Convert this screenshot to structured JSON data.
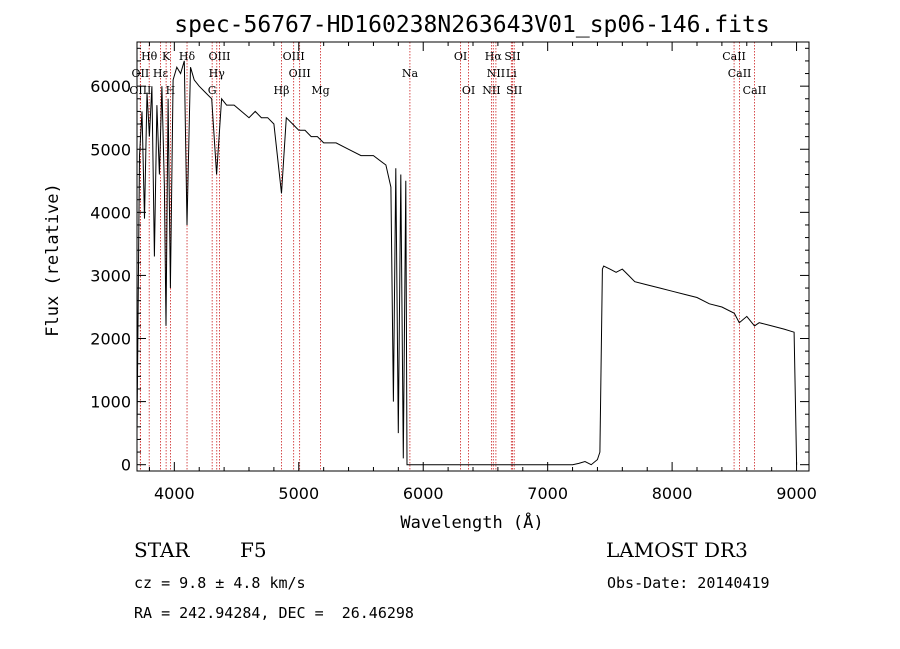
{
  "chart_data": {
    "type": "line",
    "title": "spec-56767-HD160238N263643V01_sp06-146.fits",
    "xlabel": "Wavelength (Å)",
    "ylabel": "Flux (relative)",
    "xlim": [
      3700,
      9100
    ],
    "ylim": [
      -100,
      6700
    ],
    "xticks": [
      4000,
      5000,
      6000,
      7000,
      8000,
      9000
    ],
    "yticks": [
      0,
      1000,
      2000,
      3000,
      4000,
      5000,
      6000
    ],
    "xtick_labels": [
      "4000",
      "5000",
      "6000",
      "7000",
      "8000",
      "9000"
    ],
    "ytick_labels": [
      "0",
      "1000",
      "2000",
      "3000",
      "4000",
      "5000",
      "6000"
    ],
    "series": [
      {
        "name": "spectrum",
        "x": [
          3700,
          3720,
          3740,
          3760,
          3780,
          3800,
          3820,
          3840,
          3860,
          3880,
          3900,
          3920,
          3933,
          3950,
          3968,
          3990,
          4020,
          4050,
          4080,
          4102,
          4130,
          4160,
          4200,
          4250,
          4300,
          4340,
          4380,
          4420,
          4480,
          4540,
          4600,
          4650,
          4700,
          4750,
          4800,
          4861,
          4900,
          4950,
          5000,
          5050,
          5100,
          5150,
          5200,
          5300,
          5400,
          5500,
          5600,
          5700,
          5740,
          5760,
          5780,
          5800,
          5820,
          5840,
          5860,
          5870,
          5900,
          6000,
          6100,
          6200,
          6300,
          6400,
          6500,
          6600,
          6700,
          6800,
          6900,
          7000,
          7100,
          7200,
          7250,
          7300,
          7350,
          7400,
          7420,
          7440,
          7450,
          7500,
          7550,
          7600,
          7650,
          7700,
          7800,
          7900,
          8000,
          8100,
          8200,
          8300,
          8400,
          8500,
          8540,
          8600,
          8662,
          8700,
          8800,
          8900,
          8980,
          9000
        ],
        "y": [
          500,
          4900,
          5600,
          3900,
          5900,
          5200,
          6000,
          3300,
          5700,
          4600,
          6000,
          4400,
          2200,
          5800,
          2800,
          6100,
          6300,
          6200,
          6400,
          3800,
          6300,
          6100,
          6000,
          5900,
          5800,
          4600,
          5800,
          5700,
          5700,
          5600,
          5500,
          5600,
          5500,
          5500,
          5400,
          4300,
          5500,
          5400,
          5300,
          5300,
          5200,
          5200,
          5100,
          5100,
          5000,
          4900,
          4900,
          4750,
          4400,
          1000,
          4700,
          500,
          4600,
          100,
          4500,
          0,
          0,
          0,
          0,
          0,
          0,
          0,
          0,
          0,
          0,
          0,
          0,
          0,
          0,
          0,
          20,
          50,
          0,
          80,
          200,
          3100,
          3150,
          3100,
          3050,
          3100,
          3000,
          2900,
          2850,
          2800,
          2750,
          2700,
          2650,
          2550,
          2500,
          2400,
          2250,
          2350,
          2200,
          2250,
          2200,
          2150,
          2100,
          0
        ]
      }
    ],
    "emission_lines": [
      {
        "label": "Hθ",
        "x": 3798,
        "row": 0
      },
      {
        "label": "OII",
        "x": 3727,
        "row": 1
      },
      {
        "label": "OIII",
        "x": 3727,
        "row": 2
      },
      {
        "label": "K",
        "x": 3934,
        "row": 0
      },
      {
        "label": "H",
        "x": 3969,
        "row": 2
      },
      {
        "label": "Hε",
        "x": 3889,
        "row": 1
      },
      {
        "label": "Hδ",
        "x": 4102,
        "row": 0
      },
      {
        "label": "OIII",
        "x": 4363,
        "row": 0
      },
      {
        "label": "Hγ",
        "x": 4341,
        "row": 1
      },
      {
        "label": "G",
        "x": 4304,
        "row": 2
      },
      {
        "label": "OIII",
        "x": 4959,
        "row": 0
      },
      {
        "label": "OIII",
        "x": 5007,
        "row": 1
      },
      {
        "label": "Hβ",
        "x": 4861,
        "row": 2
      },
      {
        "label": "Mg",
        "x": 5175,
        "row": 2
      },
      {
        "label": "Na",
        "x": 5893,
        "row": 1
      },
      {
        "label": "OI",
        "x": 6300,
        "row": 0
      },
      {
        "label": "OI",
        "x": 6364,
        "row": 2
      },
      {
        "label": "Hα",
        "x": 6563,
        "row": 0
      },
      {
        "label": "NII",
        "x": 6584,
        "row": 1
      },
      {
        "label": "NII",
        "x": 6548,
        "row": 2
      },
      {
        "label": "SII",
        "x": 6717,
        "row": 0
      },
      {
        "label": "Li",
        "x": 6708,
        "row": 1
      },
      {
        "label": "SII",
        "x": 6731,
        "row": 2
      },
      {
        "label": "CaII",
        "x": 8498,
        "row": 0
      },
      {
        "label": "CaII",
        "x": 8542,
        "row": 1
      },
      {
        "label": "CaII",
        "x": 8662,
        "row": 2
      }
    ]
  },
  "info": {
    "class": "STAR",
    "subclass": "F5",
    "survey": "LAMOST DR3",
    "cz": "cz = 9.8 ± 4.8 km/s",
    "obs_date": "Obs-Date: 20140419",
    "radec": "RA = 242.94284, DEC =  26.46298"
  },
  "colors": {
    "spectrum": "#000000",
    "line_marker": "#cc2222",
    "axis": "#000000"
  }
}
